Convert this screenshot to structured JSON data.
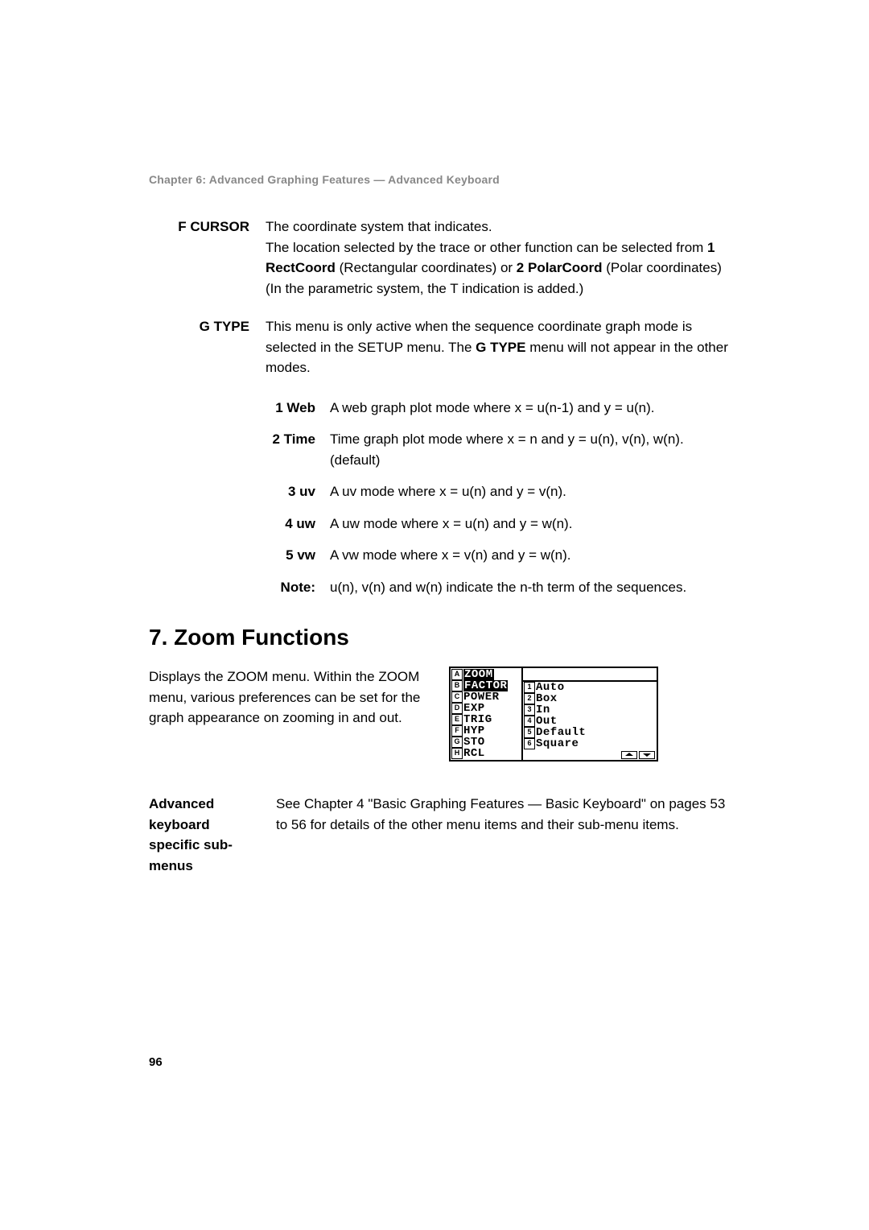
{
  "chapter": "Chapter 6: Advanced Graphing Features — Advanced Keyboard",
  "entries": [
    {
      "label": "F CURSOR",
      "body_html": "The coordinate system that indicates.<br>The location selected by the trace or other function can be selected from <b>1 RectCoord</b> (Rectangular coordinates) or <b>2 PolarCoord</b> (Polar coordinates) (In the parametric system, the T indication is added.)"
    },
    {
      "label": "G TYPE",
      "body_html": "This menu is only active when the sequence coordinate graph mode is selected in the SETUP menu. The <b>G TYPE</b> menu will not appear in the other modes."
    }
  ],
  "sub_items": [
    {
      "label": "1 Web",
      "body": "A web graph plot mode where x = u(n-1) and y = u(n)."
    },
    {
      "label": "2 Time",
      "body": "Time graph plot mode where x = n and y = u(n), v(n), w(n). (default)"
    },
    {
      "label": "3 uv",
      "body": "A uv mode where x = u(n) and y = v(n)."
    },
    {
      "label": "4 uw",
      "body": "A uw mode where x = u(n) and y = w(n)."
    },
    {
      "label": "5 vw",
      "body": "A vw mode where x = v(n) and y = w(n)."
    },
    {
      "label": "Note:",
      "body": "u(n), v(n) and w(n) indicate the n-th term of the sequences."
    }
  ],
  "section_heading": "7. Zoom Functions",
  "zoom_text": "Displays the ZOOM menu. Within the ZOOM menu, various preferences can be set for the graph appearance on zooming in and out.",
  "lcd": {
    "left": [
      {
        "key": "A",
        "text": "ZOOM",
        "hl": true
      },
      {
        "key": "B",
        "text": "FACTOR",
        "hl": true
      },
      {
        "key": "C",
        "text": "POWER"
      },
      {
        "key": "D",
        "text": "EXP"
      },
      {
        "key": "E",
        "text": "TRIG"
      },
      {
        "key": "F",
        "text": "HYP"
      },
      {
        "key": "G",
        "text": "STO"
      },
      {
        "key": "H",
        "text": "RCL"
      }
    ],
    "right": [
      {
        "key": "1",
        "text": "Auto"
      },
      {
        "key": "2",
        "text": "Box"
      },
      {
        "key": "3",
        "text": "In"
      },
      {
        "key": "4",
        "text": "Out"
      },
      {
        "key": "5",
        "text": "Default"
      },
      {
        "key": "6",
        "text": "Square"
      }
    ]
  },
  "adv_label": "Advanced keyboard specific sub-menus",
  "adv_body": "See Chapter 4 \"Basic Graphing Features — Basic Keyboard\" on pages 53 to 56 for details of the other menu items and their sub-menu items.",
  "page_number": "96"
}
